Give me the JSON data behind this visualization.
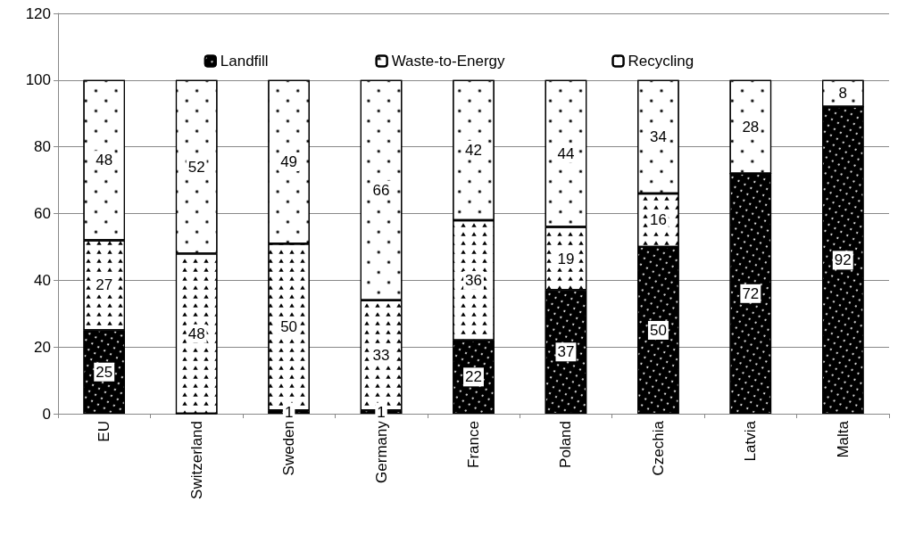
{
  "chart_data": {
    "type": "bar",
    "stacked": true,
    "categories": [
      "EU",
      "Switzerland",
      "Sweden",
      "Germany",
      "France",
      "Poland",
      "Czechia",
      "Latvia",
      "Malta"
    ],
    "series": [
      {
        "name": "Landfill",
        "color": "#000000",
        "values": [
          25,
          0,
          1,
          1,
          22,
          37,
          50,
          72,
          92
        ],
        "value_labels": [
          "25",
          null,
          "1",
          "1",
          "22",
          "37",
          "50",
          "72",
          "92"
        ]
      },
      {
        "name": "Waste-to-Energy",
        "color": "#ffffff",
        "values": [
          27,
          48,
          50,
          33,
          36,
          19,
          16,
          0,
          0
        ],
        "value_labels": [
          "27",
          "48",
          "50",
          "33",
          "36",
          "19",
          "16",
          null,
          null
        ]
      },
      {
        "name": "Recycling",
        "color": "#ffffff",
        "values": [
          48,
          52,
          49,
          66,
          42,
          44,
          34,
          28,
          8
        ],
        "value_labels": [
          "48",
          "52",
          "49",
          "66",
          "42",
          "44",
          "34",
          "28",
          "8"
        ]
      }
    ],
    "ylim": [
      0,
      120
    ],
    "yticks": [
      0,
      20,
      40,
      60,
      80,
      100,
      120
    ],
    "grid": "y",
    "legend": "top"
  }
}
